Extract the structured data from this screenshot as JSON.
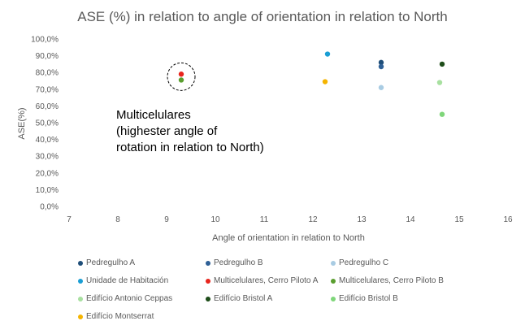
{
  "chart_data": {
    "type": "scatter",
    "title": "ASE (%) in relation to angle of orientation in relation to North",
    "xlabel": "Angle of orientation in relation to North",
    "ylabel": "ASE(%)",
    "xlim": [
      7,
      16
    ],
    "ylim": [
      0,
      100
    ],
    "x_ticks": [
      "7",
      "8",
      "9",
      "10",
      "11",
      "12",
      "13",
      "14",
      "15",
      "16"
    ],
    "y_ticks": [
      "0,0%",
      "10,0%",
      "20,0%",
      "30,0%",
      "40,0%",
      "50,0%",
      "60,0%",
      "70,0%",
      "80,0%",
      "90,0%",
      "100,0%"
    ],
    "grid": false,
    "legend_position": "bottom",
    "series": [
      {
        "name": "Pedregulho A",
        "color": "#1f4e79",
        "points": [
          {
            "x": 13.4,
            "y": 86
          }
        ]
      },
      {
        "name": "Pedregulho B",
        "color": "#2e6096",
        "points": [
          {
            "x": 13.4,
            "y": 83.5
          }
        ]
      },
      {
        "name": "Pedregulho C",
        "color": "#a9cce3",
        "points": [
          {
            "x": 13.4,
            "y": 71
          }
        ]
      },
      {
        "name": "Unidade de Habitación",
        "color": "#1a9ed4",
        "points": [
          {
            "x": 12.3,
            "y": 91
          }
        ]
      },
      {
        "name": "Multicelulares, Cerro Piloto A",
        "color": "#e8251d",
        "points": [
          {
            "x": 9.3,
            "y": 79
          }
        ]
      },
      {
        "name": "Multicelulares, Cerro Piloto B",
        "color": "#5a9e2f",
        "points": [
          {
            "x": 9.3,
            "y": 75.5
          }
        ]
      },
      {
        "name": "Edifício Antonio Ceppas",
        "color": "#a8e0a0",
        "points": [
          {
            "x": 14.6,
            "y": 74
          }
        ]
      },
      {
        "name": "Edifício Bristol A",
        "color": "#1e4d1a",
        "points": [
          {
            "x": 14.65,
            "y": 85
          }
        ]
      },
      {
        "name": "Edifício Bristol B",
        "color": "#7fd67a",
        "points": [
          {
            "x": 14.65,
            "y": 55
          }
        ]
      },
      {
        "name": "Edifício Montserrat",
        "color": "#f5b400",
        "points": [
          {
            "x": 12.25,
            "y": 74.5
          }
        ]
      }
    ],
    "annotation": {
      "lines": [
        "Multicelulares",
        "(highester angle of",
        "rotation in relation to North)"
      ],
      "circle_center": {
        "x": 9.3,
        "y": 77.5
      }
    }
  }
}
